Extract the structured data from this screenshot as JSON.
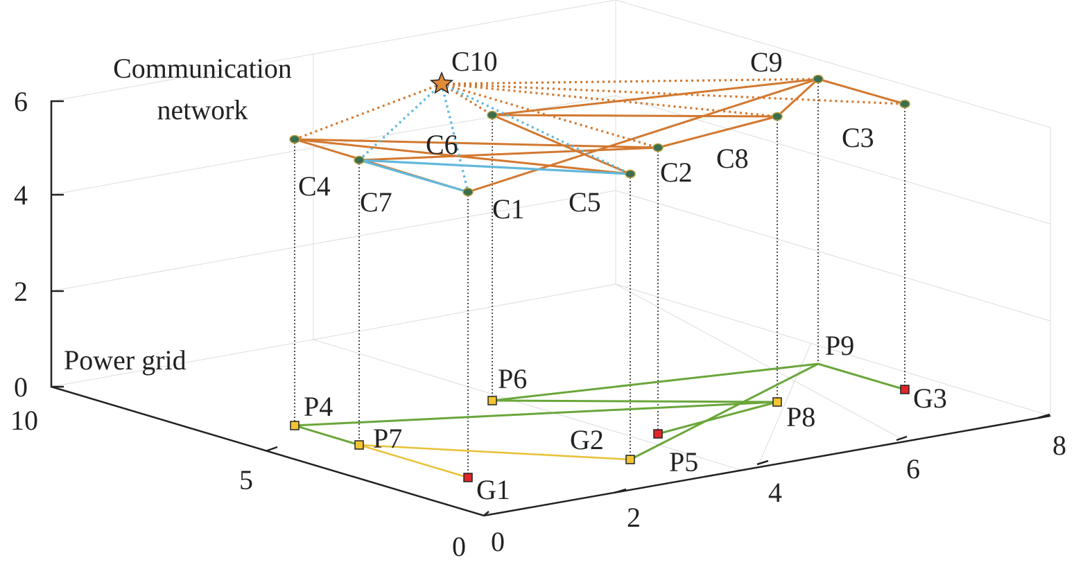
{
  "labels": {
    "comm_line1": "Communication",
    "comm_line2": "network",
    "power": "Power grid"
  },
  "colors": {
    "comm_edge": "#d2782f",
    "control_edge": "#62b8dc",
    "power_edge": "#6aa63a",
    "branch_edge": "#e8c23a",
    "comm_node": "#3a6e50",
    "generator": "#e0262a",
    "load": "#f2c431",
    "star": "#e08a3a"
  },
  "axes": {
    "z_ticks": [
      "0",
      "2",
      "4",
      "6"
    ],
    "y_ticks": [
      "10",
      "5",
      "0"
    ],
    "x_ticks": [
      "0",
      "2",
      "4",
      "6",
      "8"
    ]
  },
  "comm_nodes": [
    {
      "id": "C1",
      "label": "C1"
    },
    {
      "id": "C2",
      "label": "C2"
    },
    {
      "id": "C3",
      "label": "C3"
    },
    {
      "id": "C4",
      "label": "C4"
    },
    {
      "id": "C5",
      "label": "C5"
    },
    {
      "id": "C6",
      "label": "C6"
    },
    {
      "id": "C7",
      "label": "C7"
    },
    {
      "id": "C8",
      "label": "C8"
    },
    {
      "id": "C9",
      "label": "C9"
    },
    {
      "id": "C10",
      "label": "C10"
    }
  ],
  "power_nodes": [
    {
      "id": "G1",
      "label": "G1",
      "kind": "generator"
    },
    {
      "id": "G2",
      "label": "G2",
      "kind": "generator"
    },
    {
      "id": "G3",
      "label": "G3",
      "kind": "generator"
    },
    {
      "id": "P4",
      "label": "P4",
      "kind": "load"
    },
    {
      "id": "P5",
      "label": "P5",
      "kind": "load"
    },
    {
      "id": "P6",
      "label": "P6",
      "kind": "load"
    },
    {
      "id": "P7",
      "label": "P7",
      "kind": "load"
    },
    {
      "id": "P8",
      "label": "P8",
      "kind": "load"
    },
    {
      "id": "P9",
      "label": "P9",
      "kind": "bus"
    }
  ],
  "comm_edges": [
    [
      "C4",
      "C2"
    ],
    [
      "C4",
      "C5"
    ],
    [
      "C4",
      "C1"
    ],
    [
      "C7",
      "C2"
    ],
    [
      "C6",
      "C9"
    ],
    [
      "C6",
      "C8"
    ],
    [
      "C6",
      "C5"
    ],
    [
      "C9",
      "C3"
    ],
    [
      "C9",
      "C8"
    ],
    [
      "C8",
      "C2"
    ],
    [
      "C1",
      "C9"
    ]
  ],
  "control_edges": [
    [
      "C7",
      "C5"
    ],
    [
      "C7",
      "C1"
    ]
  ],
  "hub_edges": [
    "C4",
    "C6",
    "C2",
    "C8",
    "C9",
    "C3"
  ],
  "hub_control_edges": [
    "C7",
    "C1",
    "C5"
  ],
  "power_edges": [
    [
      "P4",
      "P8"
    ],
    [
      "P6",
      "P8"
    ],
    [
      "P6",
      "P9"
    ],
    [
      "P9",
      "G3"
    ],
    [
      "P9",
      "P5"
    ],
    [
      "P8",
      "G2"
    ],
    [
      "P4",
      "P7"
    ]
  ],
  "branch_edges": [
    [
      "P7",
      "G1"
    ],
    [
      "P7",
      "P5"
    ]
  ]
}
